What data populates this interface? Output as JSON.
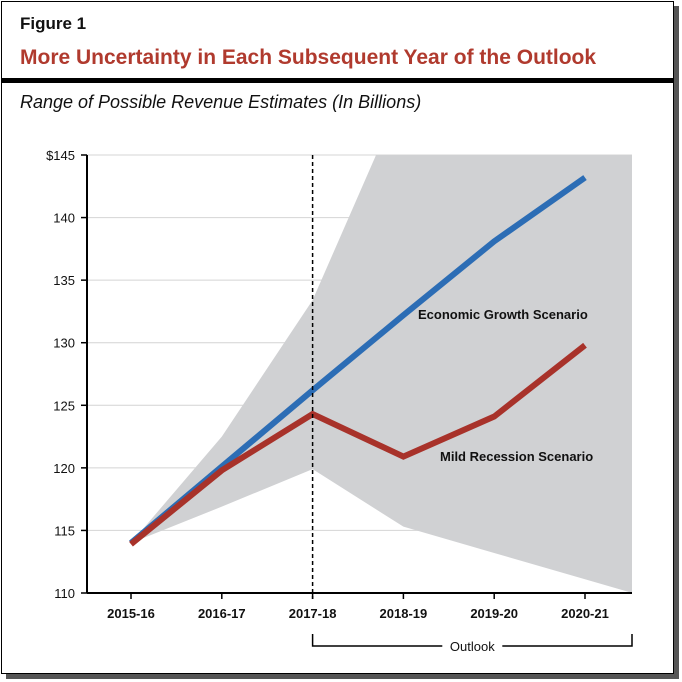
{
  "figure_label": "Figure 1",
  "title": "More Uncertainty in Each Subsequent Year of the Outlook",
  "chart_data": {
    "type": "line",
    "title": "More Uncertainty in Each Subsequent Year of the Outlook",
    "subtitle": "Range of Possible Revenue Estimates (In Billions)",
    "xlabel": "",
    "ylabel": "",
    "categories": [
      "2015-16",
      "2016-17",
      "2017-18",
      "2018-19",
      "2019-20",
      "2020-21"
    ],
    "ylim": [
      110,
      145
    ],
    "yticks": [
      110,
      115,
      120,
      125,
      130,
      135,
      140,
      145
    ],
    "ytick_labels": [
      "110",
      "115",
      "120",
      "125",
      "130",
      "135",
      "140",
      "$145"
    ],
    "grid": true,
    "series": [
      {
        "name": "Economic Growth Scenario",
        "color": "#2c6db5",
        "values": [
          114,
          120.1,
          126.2,
          132.2,
          138.1,
          143.2
        ]
      },
      {
        "name": "Mild Recession Scenario",
        "color": "#a8322a",
        "values": [
          113.9,
          119.8,
          124.3,
          120.9,
          124.1,
          129.8
        ]
      }
    ],
    "range_band": {
      "color": "#d0d1d3",
      "upper": [
        114,
        122.5,
        133.4,
        150,
        170,
        190
      ],
      "lower": [
        114,
        116.9,
        119.9,
        115.3,
        113.2,
        111.1
      ]
    },
    "divider_at": "2017-18",
    "bracket_label": "Outlook"
  }
}
